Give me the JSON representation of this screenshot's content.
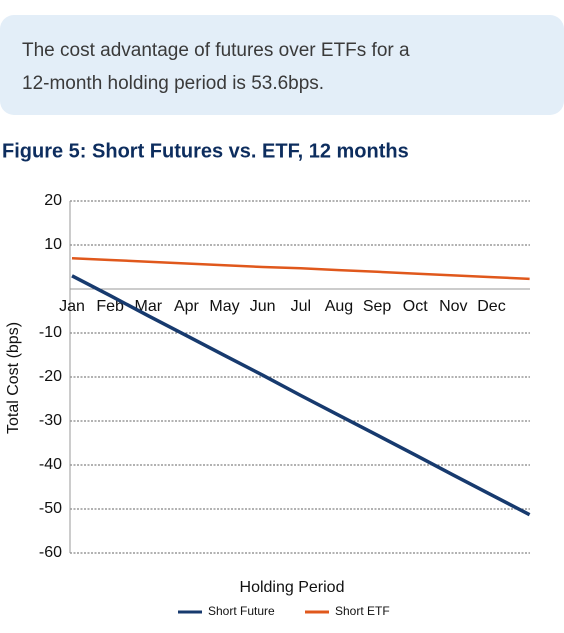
{
  "callout": {
    "text": [
      "The cost advantage of futures over ETFs for a",
      "12-month holding period is 53.6bps."
    ]
  },
  "chart_data": {
    "type": "line",
    "title": "Figure 5: Short Futures vs. ETF, 12 months",
    "x_label": "Holding Period",
    "y_label": "Total Cost (bps)",
    "categories": [
      "Jan",
      "Feb",
      "Mar",
      "Apr",
      "May",
      "Jun",
      "Jul",
      "Aug",
      "Sep",
      "Oct",
      "Nov",
      "Dec",
      null
    ],
    "series": [
      {
        "name": "Short Future",
        "color": "#173a6e",
        "values": [
          3,
          -1.5,
          -6.1,
          -10.6,
          -15.1,
          -19.6,
          -24.2,
          -28.7,
          -33.2,
          -37.7,
          -42.3,
          -46.8,
          -51.3
        ]
      },
      {
        "name": "Short ETF",
        "color": "#e0581c",
        "values": [
          7,
          6.6,
          6.2,
          5.8,
          5.4,
          5.0,
          4.7,
          4.3,
          3.9,
          3.5,
          3.1,
          2.7,
          2.3
        ]
      }
    ],
    "ylim": [
      -60,
      20
    ],
    "yticks": [
      20,
      10,
      -10,
      -20,
      -30,
      -40,
      -50,
      -60
    ],
    "grid": true,
    "legend": "bottom"
  }
}
